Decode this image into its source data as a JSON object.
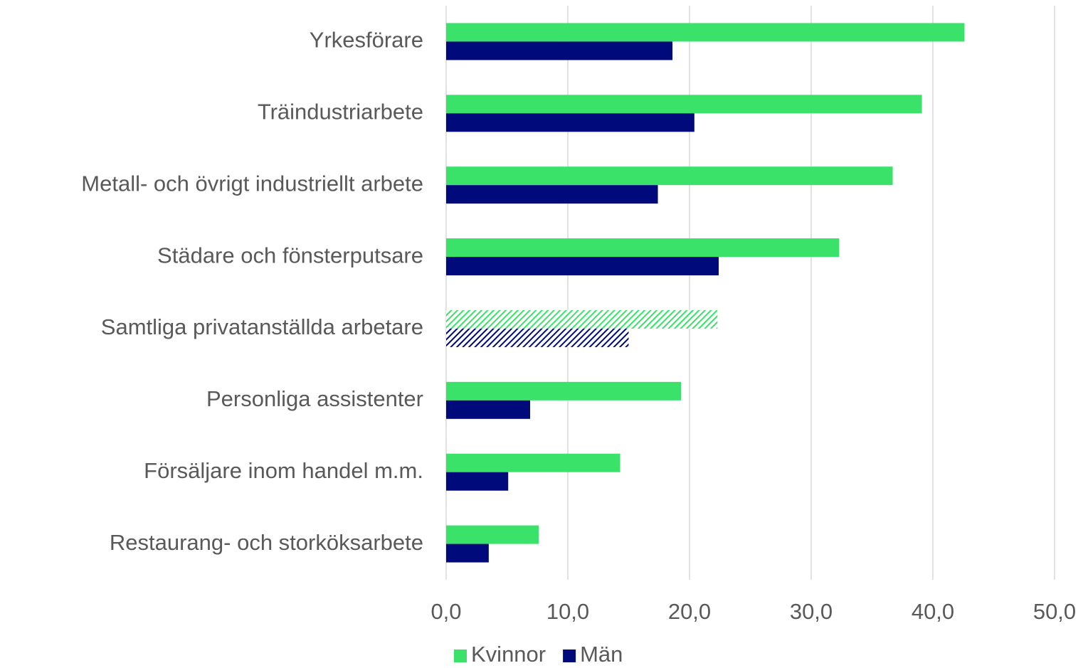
{
  "chart_data": {
    "type": "barh",
    "categories": [
      "Yrkesförare",
      "Träindustriarbete",
      "Metall- och övrigt industriellt arbete",
      "Städare och fönsterputsare",
      "Samtliga privatanställda arbetare",
      "Personliga assistenter",
      "Försäljare inom handel m.m.",
      "Restaurang- och storköksarbete"
    ],
    "series": [
      {
        "name": "Kvinnor",
        "color": "#3ae26a",
        "values": [
          42.6,
          39.1,
          36.7,
          32.3,
          22.3,
          19.3,
          14.3,
          7.6
        ]
      },
      {
        "name": "Män",
        "color": "#000a7a",
        "values": [
          18.6,
          20.4,
          17.4,
          22.4,
          15.0,
          6.9,
          5.1,
          3.5
        ]
      }
    ],
    "hatched": [
      false,
      false,
      false,
      false,
      true,
      false,
      false,
      false
    ],
    "xlim": [
      0,
      50
    ],
    "xticks": [
      {
        "value": 0,
        "label": "0,0"
      },
      {
        "value": 10,
        "label": "10,0"
      },
      {
        "value": 20,
        "label": "20,0"
      },
      {
        "value": 30,
        "label": "30,0"
      },
      {
        "value": 40,
        "label": "40,0"
      },
      {
        "value": 50,
        "label": "50,0"
      }
    ],
    "grid": true,
    "legend": "bottom"
  }
}
